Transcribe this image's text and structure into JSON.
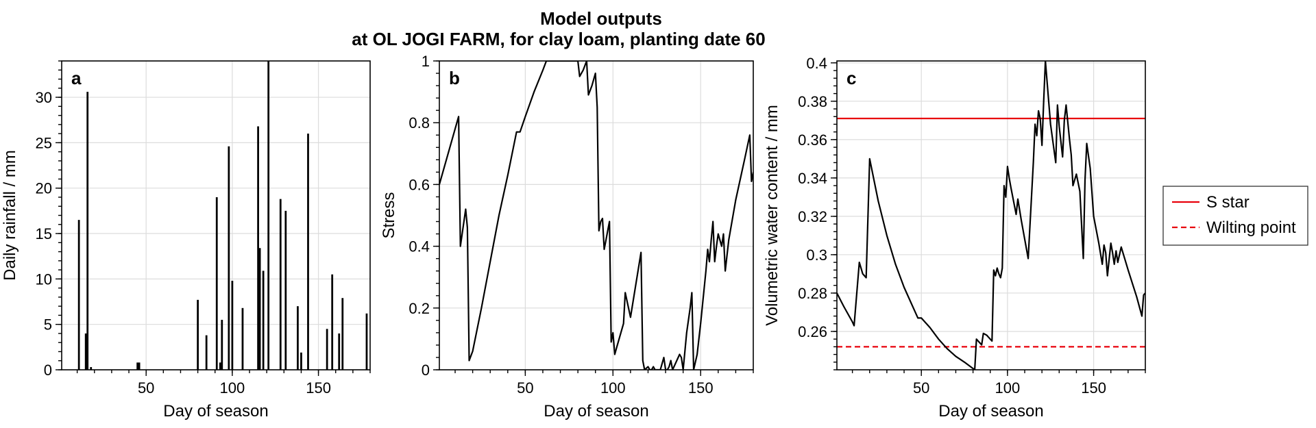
{
  "figure": {
    "title_line1": "Model outputs",
    "title_line2": "at OL JOGI FARM, for clay loam, planting date 60",
    "line_color": "#000000",
    "s_star_color": "#e8000b",
    "wilting_color": "#e8000b"
  },
  "legend": {
    "s_star": "S star",
    "wilting_point": "Wilting point"
  },
  "chart_data": [
    {
      "id": "a",
      "panel_label": "a",
      "type": "bar",
      "xlabel": "Day of season",
      "ylabel": "Daily rainfall / mm",
      "xlim": [
        1,
        180
      ],
      "ylim": [
        0,
        34
      ],
      "xticks": [
        50,
        100,
        150
      ],
      "xtick_labels": [
        "50",
        "100",
        "150"
      ],
      "yticks": [
        0,
        5,
        10,
        15,
        20,
        25,
        30
      ],
      "ytick_labels": [
        "0",
        "5",
        "10",
        "15",
        "20",
        "25",
        "30"
      ],
      "bar_width": 1.1,
      "x": [
        11,
        15,
        16,
        18,
        45,
        46,
        80,
        85,
        91,
        93,
        94,
        98,
        100,
        106,
        115,
        116,
        118,
        121,
        128,
        131,
        138,
        140,
        144,
        155,
        158,
        162,
        164,
        178
      ],
      "values": [
        16.5,
        4.0,
        30.6,
        0.3,
        0.8,
        0.8,
        7.7,
        3.8,
        19.0,
        0.8,
        5.5,
        24.6,
        9.8,
        6.8,
        26.8,
        13.4,
        10.9,
        34.0,
        18.8,
        17.5,
        7.0,
        1.9,
        26.0,
        4.5,
        10.5,
        4.0,
        7.9,
        6.2
      ]
    },
    {
      "id": "b",
      "panel_label": "b",
      "type": "line",
      "xlabel": "Day of season",
      "ylabel": "Stress",
      "xlim": [
        1,
        180
      ],
      "ylim": [
        0,
        1
      ],
      "xticks": [
        50,
        100,
        150
      ],
      "xtick_labels": [
        "50",
        "100",
        "150"
      ],
      "yticks": [
        0,
        0.2,
        0.4,
        0.6,
        0.8,
        1
      ],
      "ytick_labels": [
        "0",
        "0.2",
        "0.4",
        "0.6",
        "0.8",
        "1"
      ],
      "series": [
        {
          "name": "Stress",
          "x": [
            1,
            12,
            13,
            16,
            17,
            18,
            20,
            25,
            30,
            35,
            40,
            45,
            46,
            47,
            50,
            55,
            60,
            62,
            65,
            70,
            80,
            81,
            83,
            85,
            86,
            88,
            90,
            91,
            92,
            93,
            94,
            95,
            96,
            97,
            98,
            99,
            100,
            101,
            102,
            106,
            107,
            110,
            116,
            117,
            118,
            120,
            121,
            122,
            123,
            124,
            127,
            129,
            130,
            131,
            132,
            133,
            134,
            138,
            139,
            140,
            142,
            144,
            145,
            146,
            148,
            150,
            153,
            154,
            155,
            156,
            157,
            158,
            159,
            160,
            162,
            163,
            164,
            166,
            170,
            175,
            178,
            179,
            180
          ],
          "y": [
            0.6,
            0.82,
            0.4,
            0.52,
            0.46,
            0.03,
            0.06,
            0.2,
            0.35,
            0.5,
            0.63,
            0.77,
            0.77,
            0.77,
            0.82,
            0.9,
            0.97,
            1.0,
            1.0,
            1.0,
            1.0,
            0.95,
            0.97,
            1.0,
            0.89,
            0.92,
            0.96,
            0.85,
            0.45,
            0.48,
            0.49,
            0.39,
            0.42,
            0.45,
            0.48,
            0.09,
            0.12,
            0.05,
            0.07,
            0.15,
            0.25,
            0.17,
            0.38,
            0.03,
            0.0,
            0.01,
            0.0,
            0.0,
            0.01,
            0.0,
            0.0,
            0.04,
            0.0,
            0.0,
            0.01,
            0.03,
            0.0,
            0.05,
            0.04,
            0.0,
            0.12,
            0.2,
            0.25,
            0.0,
            0.05,
            0.15,
            0.32,
            0.39,
            0.35,
            0.42,
            0.48,
            0.35,
            0.4,
            0.44,
            0.4,
            0.44,
            0.32,
            0.42,
            0.55,
            0.68,
            0.76,
            0.61,
            0.64
          ]
        }
      ]
    },
    {
      "id": "c",
      "panel_label": "c",
      "type": "line",
      "xlabel": "Day of season",
      "ylabel": "Volumetric water content / mm",
      "xlim": [
        1,
        180
      ],
      "ylim": [
        0.24,
        0.401
      ],
      "xticks": [
        50,
        100,
        150
      ],
      "xtick_labels": [
        "50",
        "100",
        "150"
      ],
      "yticks": [
        0.26,
        0.28,
        0.3,
        0.32,
        0.34,
        0.36,
        0.38,
        0.4
      ],
      "ytick_labels": [
        "0.26",
        "0.28",
        "0.3",
        "0.32",
        "0.34",
        "0.36",
        "0.38",
        "0.4"
      ],
      "series": [
        {
          "name": "Volumetric water content",
          "x": [
            1,
            5,
            10,
            11,
            14,
            15,
            16,
            18,
            20,
            25,
            30,
            35,
            40,
            45,
            48,
            50,
            55,
            60,
            65,
            70,
            75,
            81,
            82,
            85,
            86,
            88,
            90,
            91,
            92,
            93,
            94,
            95,
            96,
            97,
            98,
            99,
            100,
            101,
            102,
            105,
            106,
            108,
            112,
            115,
            116,
            117,
            118,
            119,
            120,
            121,
            122,
            123,
            125,
            128,
            129,
            130,
            132,
            133,
            134,
            136,
            137,
            138,
            140,
            142,
            144,
            145,
            146,
            148,
            150,
            153,
            155,
            156,
            157,
            158,
            160,
            161,
            162,
            163,
            164,
            166,
            170,
            175,
            178,
            179,
            180
          ],
          "y": [
            0.28,
            0.273,
            0.265,
            0.263,
            0.296,
            0.293,
            0.29,
            0.288,
            0.35,
            0.328,
            0.31,
            0.295,
            0.283,
            0.273,
            0.267,
            0.267,
            0.262,
            0.256,
            0.251,
            0.247,
            0.244,
            0.24,
            0.256,
            0.253,
            0.259,
            0.258,
            0.256,
            0.255,
            0.292,
            0.289,
            0.293,
            0.29,
            0.288,
            0.293,
            0.336,
            0.33,
            0.346,
            0.34,
            0.335,
            0.321,
            0.329,
            0.318,
            0.298,
            0.348,
            0.368,
            0.362,
            0.375,
            0.371,
            0.357,
            0.38,
            0.401,
            0.39,
            0.368,
            0.348,
            0.378,
            0.367,
            0.351,
            0.37,
            0.378,
            0.36,
            0.352,
            0.336,
            0.342,
            0.333,
            0.298,
            0.339,
            0.358,
            0.345,
            0.32,
            0.306,
            0.295,
            0.305,
            0.301,
            0.289,
            0.306,
            0.301,
            0.295,
            0.302,
            0.296,
            0.304,
            0.292,
            0.278,
            0.268,
            0.279,
            0.28
          ]
        }
      ],
      "hlines": [
        {
          "name": "S star",
          "y": 0.371,
          "style": "solid"
        },
        {
          "name": "Wilting point",
          "y": 0.252,
          "style": "dashed"
        }
      ]
    }
  ]
}
